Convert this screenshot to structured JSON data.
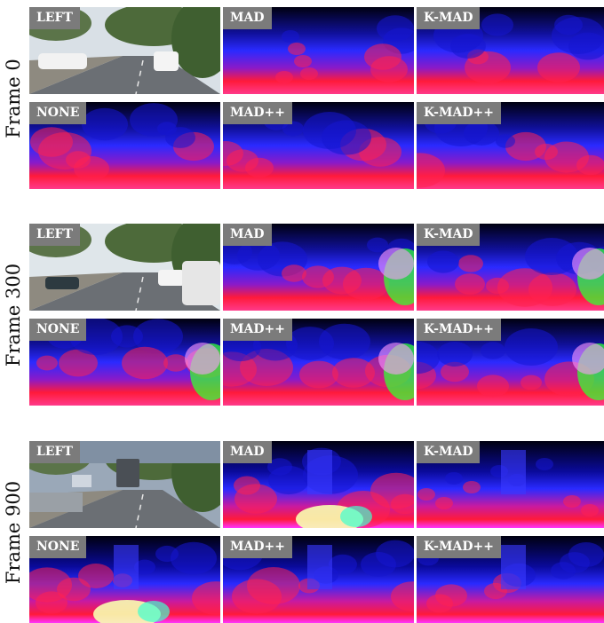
{
  "figure": {
    "groups": [
      {
        "row_label": "Frame 0",
        "tiles": [
          {
            "label": "LEFT",
            "kind": "road-photo",
            "variant": 0
          },
          {
            "label": "MAD",
            "kind": "disparity",
            "variant": 0
          },
          {
            "label": "K-MAD",
            "kind": "disparity",
            "variant": 1
          },
          {
            "label": "NONE",
            "kind": "disparity",
            "variant": 2
          },
          {
            "label": "MAD++",
            "kind": "disparity",
            "variant": 3
          },
          {
            "label": "K-MAD++",
            "kind": "disparity",
            "variant": 4
          }
        ]
      },
      {
        "row_label": "Frame 300",
        "tiles": [
          {
            "label": "LEFT",
            "kind": "road-photo",
            "variant": 1
          },
          {
            "label": "MAD",
            "kind": "disparity",
            "variant": 5
          },
          {
            "label": "K-MAD",
            "kind": "disparity",
            "variant": 6
          },
          {
            "label": "NONE",
            "kind": "disparity",
            "variant": 7
          },
          {
            "label": "MAD++",
            "kind": "disparity",
            "variant": 8
          },
          {
            "label": "K-MAD++",
            "kind": "disparity",
            "variant": 9
          }
        ]
      },
      {
        "row_label": "Frame 900",
        "tiles": [
          {
            "label": "LEFT",
            "kind": "road-photo",
            "variant": 2
          },
          {
            "label": "MAD",
            "kind": "disparity",
            "variant": 10
          },
          {
            "label": "K-MAD",
            "kind": "disparity",
            "variant": 11
          },
          {
            "label": "NONE",
            "kind": "disparity",
            "variant": 12
          },
          {
            "label": "MAD++",
            "kind": "disparity",
            "variant": 13
          },
          {
            "label": "K-MAD++",
            "kind": "disparity",
            "variant": 14
          }
        ]
      }
    ],
    "colors": {
      "tag_background": "#7b7b7b",
      "tag_text": "#ffffff",
      "disparity_far": "#000010",
      "disparity_mid": "#1a1aff",
      "disparity_near": "#ff1a3a",
      "disparity_very_near": "#ff33ff",
      "disparity_artifact_green": "#33ff33"
    }
  }
}
